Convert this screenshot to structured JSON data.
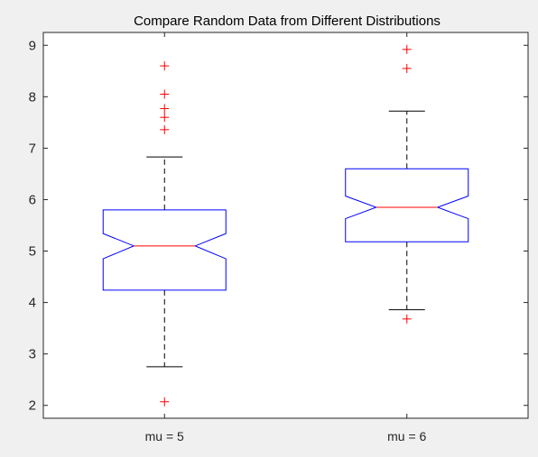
{
  "chart_data": {
    "type": "box",
    "title": "Compare Random Data from Different Distributions",
    "xlabel": "",
    "ylabel": "",
    "ylim": [
      1.75,
      9.25
    ],
    "yticks": [
      2,
      3,
      4,
      5,
      6,
      7,
      8,
      9
    ],
    "notched": true,
    "grid": false,
    "categories": [
      "mu = 5",
      "mu = 6"
    ],
    "boxes": [
      {
        "label": "mu = 5",
        "q1": 4.24,
        "median": 5.1,
        "q3": 5.8,
        "notch_low": 4.85,
        "notch_high": 5.34,
        "whisker_low": 2.75,
        "whisker_high": 6.83,
        "outliers": [
          2.07,
          7.36,
          7.6,
          7.77,
          8.05,
          8.6
        ]
      },
      {
        "label": "mu = 6",
        "q1": 5.18,
        "median": 5.85,
        "q3": 6.6,
        "notch_low": 5.63,
        "notch_high": 6.07,
        "whisker_low": 3.86,
        "whisker_high": 7.72,
        "outliers": [
          3.68,
          8.55,
          8.92
        ]
      }
    ],
    "colors": {
      "box": "#0000ff",
      "median": "#ff0000",
      "whisker": "#000000",
      "outlier": "#ff0000",
      "axes_bg": "#ffffff",
      "figure_bg": "#f0f0f0"
    }
  }
}
